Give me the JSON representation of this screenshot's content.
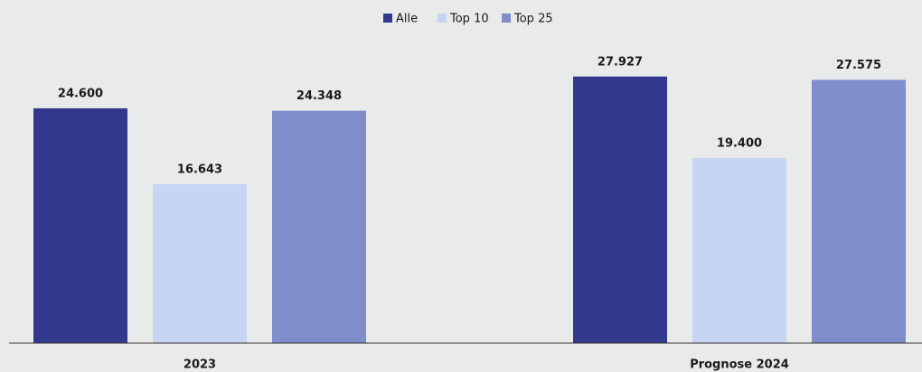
{
  "chart_data": {
    "type": "bar",
    "categories": [
      "2023",
      "Prognose 2024"
    ],
    "series": [
      {
        "name": "Alle",
        "color": "#32398c",
        "values": [
          24600,
          27927
        ],
        "value_labels": [
          "24.600",
          "27.927"
        ]
      },
      {
        "name": "Top 10",
        "color": "#c5d5f2",
        "values": [
          16643,
          19400
        ],
        "value_labels": [
          "16.643",
          "19.400"
        ]
      },
      {
        "name": "Top 25",
        "color": "#7f8dcb",
        "values": [
          24348,
          27575
        ],
        "value_labels": [
          "24.348",
          "27.575"
        ]
      }
    ],
    "ylim": [
      0,
      35000
    ],
    "legend": "top"
  }
}
